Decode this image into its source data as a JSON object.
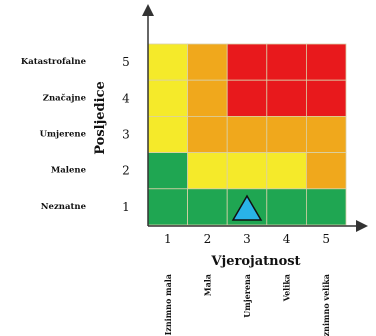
{
  "matrix": {
    "y_title": "Posljedice",
    "x_title": "Vjerojatnost",
    "y_levels": [
      {
        "num": "5",
        "label": "Katastrofalne"
      },
      {
        "num": "4",
        "label": "Značajne"
      },
      {
        "num": "3",
        "label": "Umjerene"
      },
      {
        "num": "2",
        "label": "Malene"
      },
      {
        "num": "1",
        "label": "Neznatne"
      }
    ],
    "x_levels": [
      {
        "num": "1",
        "label": "Iznimno mala"
      },
      {
        "num": "2",
        "label": "Mala"
      },
      {
        "num": "3",
        "label": "Umjerena"
      },
      {
        "num": "4",
        "label": "Velika"
      },
      {
        "num": "5",
        "label": "Iznimno velika"
      }
    ],
    "colors": {
      "green": "#1fa652",
      "yellow": "#f5ea2a",
      "orange": "#f0a81c",
      "red": "#e8191c",
      "marker": "#29b3e8"
    },
    "cells": [
      [
        "yellow",
        "orange",
        "red",
        "red",
        "red"
      ],
      [
        "yellow",
        "orange",
        "red",
        "red",
        "red"
      ],
      [
        "yellow",
        "orange",
        "orange",
        "orange",
        "orange"
      ],
      [
        "green",
        "yellow",
        "yellow",
        "yellow",
        "orange"
      ],
      [
        "green",
        "green",
        "green",
        "green",
        "green"
      ]
    ],
    "marker": {
      "shape": "triangle",
      "likelihood": 3,
      "consequence": 1
    }
  }
}
